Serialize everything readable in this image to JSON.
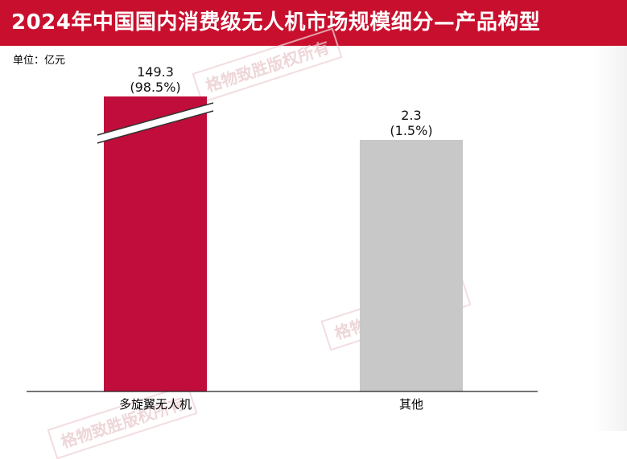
{
  "title": "2024年中国国内消费级无人机市场规模细分—产品构型",
  "unit_label": "单位：亿元",
  "watermark": "格物致胜版权所有",
  "chart_data": {
    "type": "bar",
    "title": "2024年中国国内消费级无人机市场规模细分—产品构型",
    "unit": "亿元",
    "categories": [
      "多旋翼无人机",
      "其他"
    ],
    "values": [
      149.3,
      2.3
    ],
    "value_labels": [
      "149.3",
      "2.3"
    ],
    "share_labels": [
      "(98.5%)",
      "(1.5%)"
    ],
    "colors": [
      "#c00d3b",
      "#c8c8c8"
    ],
    "axis_break_on": "多旋翼无人机",
    "grid": false,
    "legend": "none"
  }
}
